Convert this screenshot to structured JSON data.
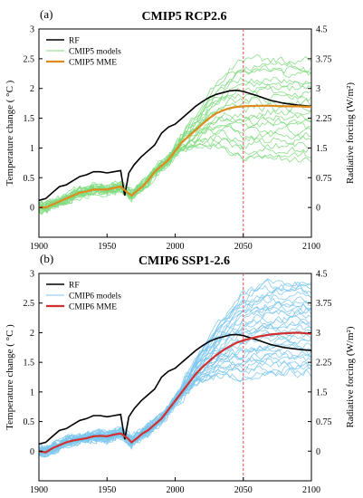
{
  "chart_data": [
    {
      "type": "line",
      "panel_label": "(a)",
      "title": "CMIP5 RCP2.6",
      "xlabel": "",
      "ylabel": "Temperature change ( °C )",
      "y2label": "Radiative forcing (W/m²)",
      "xlim": [
        1900,
        2100
      ],
      "ylim": [
        -0.5,
        3
      ],
      "y2lim": [
        -0.75,
        4.5
      ],
      "xticks": [
        "1900",
        "1950",
        "2000",
        "2050",
        "2100"
      ],
      "yticks": [
        "0",
        "0.5",
        "1",
        "1.5",
        "2",
        "2.5",
        "3"
      ],
      "y2ticks": [
        "0",
        "0.75",
        "1.5",
        "2.25",
        "3",
        "3.75",
        "4.5"
      ],
      "vline_x": 2050,
      "legend_position": "top-left",
      "legend": [
        "RF",
        "CMIP5 models",
        "CMIP5 MME"
      ],
      "colors": {
        "rf": "#000000",
        "models": "#7fdc7f",
        "mme": "#e08a1e",
        "vline": "#e05050"
      },
      "rf": {
        "x": [
          1900,
          1905,
          1910,
          1915,
          1920,
          1925,
          1930,
          1935,
          1940,
          1945,
          1950,
          1955,
          1960,
          1963,
          1966,
          1970,
          1975,
          1980,
          1985,
          1990,
          1995,
          2000,
          2005,
          2010,
          2015,
          2020,
          2025,
          2030,
          2035,
          2040,
          2045,
          2050,
          2060,
          2070,
          2080,
          2090,
          2100
        ],
        "y": [
          0.12,
          0.15,
          0.25,
          0.35,
          0.38,
          0.45,
          0.52,
          0.55,
          0.6,
          0.6,
          0.58,
          0.6,
          0.62,
          0.2,
          0.58,
          0.72,
          0.85,
          0.95,
          1.05,
          1.25,
          1.35,
          1.4,
          1.5,
          1.6,
          1.7,
          1.78,
          1.85,
          1.9,
          1.93,
          1.96,
          1.97,
          1.95,
          1.88,
          1.8,
          1.75,
          1.72,
          1.7
        ]
      },
      "mme": {
        "x": [
          1900,
          1905,
          1910,
          1915,
          1920,
          1925,
          1930,
          1935,
          1940,
          1945,
          1950,
          1955,
          1960,
          1965,
          1968,
          1972,
          1976,
          1980,
          1985,
          1990,
          1995,
          2000,
          2005,
          2010,
          2015,
          2020,
          2025,
          2030,
          2035,
          2040,
          2045,
          2050,
          2060,
          2070,
          2080,
          2090,
          2100
        ],
        "y": [
          0.0,
          0.0,
          0.05,
          0.1,
          0.15,
          0.2,
          0.25,
          0.27,
          0.3,
          0.3,
          0.3,
          0.33,
          0.35,
          0.25,
          0.2,
          0.28,
          0.35,
          0.45,
          0.6,
          0.7,
          0.8,
          0.95,
          1.1,
          1.2,
          1.3,
          1.4,
          1.5,
          1.58,
          1.63,
          1.67,
          1.69,
          1.7,
          1.71,
          1.71,
          1.7,
          1.7,
          1.69
        ]
      },
      "models_envelope": {
        "upper_end": 2.45,
        "lower_end": 0.8
      }
    },
    {
      "type": "line",
      "panel_label": "(b)",
      "title": "CMIP6 SSP1-2.6",
      "xlabel": "",
      "ylabel": "Temperature change ( °C )",
      "y2label": "Radiative forcing (W/m²)",
      "xlim": [
        1900,
        2100
      ],
      "ylim": [
        -0.5,
        3
      ],
      "y2lim": [
        -0.75,
        4.5
      ],
      "xticks": [
        "1900",
        "1950",
        "2000",
        "2050",
        "2100"
      ],
      "yticks": [
        "0",
        "0.5",
        "1",
        "1.5",
        "2",
        "2.5",
        "3"
      ],
      "y2ticks": [
        "0",
        "0.75",
        "1.5",
        "2.25",
        "3",
        "3.75",
        "4.5"
      ],
      "vline_x": 2050,
      "legend_position": "top-left",
      "legend": [
        "RF",
        "CMIP6 models",
        "CMIP6 MME"
      ],
      "colors": {
        "rf": "#000000",
        "models": "#7cc6ee",
        "mme": "#d03030",
        "vline": "#e05050"
      },
      "rf": {
        "x": [
          1900,
          1905,
          1910,
          1915,
          1920,
          1925,
          1930,
          1935,
          1940,
          1945,
          1950,
          1955,
          1960,
          1963,
          1966,
          1970,
          1975,
          1980,
          1985,
          1990,
          1995,
          2000,
          2005,
          2010,
          2015,
          2020,
          2025,
          2030,
          2035,
          2040,
          2045,
          2050,
          2060,
          2070,
          2080,
          2090,
          2100
        ],
        "y": [
          0.12,
          0.15,
          0.25,
          0.35,
          0.38,
          0.45,
          0.52,
          0.55,
          0.6,
          0.6,
          0.58,
          0.6,
          0.62,
          0.2,
          0.58,
          0.72,
          0.85,
          0.95,
          1.05,
          1.25,
          1.35,
          1.4,
          1.5,
          1.6,
          1.7,
          1.78,
          1.85,
          1.9,
          1.93,
          1.96,
          1.97,
          1.95,
          1.88,
          1.8,
          1.75,
          1.72,
          1.7
        ]
      },
      "mme": {
        "x": [
          1900,
          1905,
          1910,
          1915,
          1920,
          1925,
          1930,
          1935,
          1940,
          1945,
          1950,
          1955,
          1960,
          1965,
          1968,
          1972,
          1976,
          1980,
          1985,
          1990,
          1995,
          2000,
          2005,
          2010,
          2015,
          2020,
          2025,
          2030,
          2035,
          2040,
          2045,
          2050,
          2060,
          2070,
          2080,
          2090,
          2100
        ],
        "y": [
          0.0,
          -0.02,
          0.05,
          0.1,
          0.15,
          0.18,
          0.2,
          0.22,
          0.25,
          0.26,
          0.25,
          0.28,
          0.3,
          0.22,
          0.15,
          0.22,
          0.3,
          0.35,
          0.45,
          0.55,
          0.7,
          0.85,
          1.0,
          1.15,
          1.3,
          1.42,
          1.52,
          1.62,
          1.7,
          1.77,
          1.83,
          1.87,
          1.93,
          1.97,
          1.99,
          2.0,
          1.98
        ]
      },
      "models_envelope": {
        "upper_end": 2.85,
        "lower_end": 1.3
      }
    }
  ]
}
